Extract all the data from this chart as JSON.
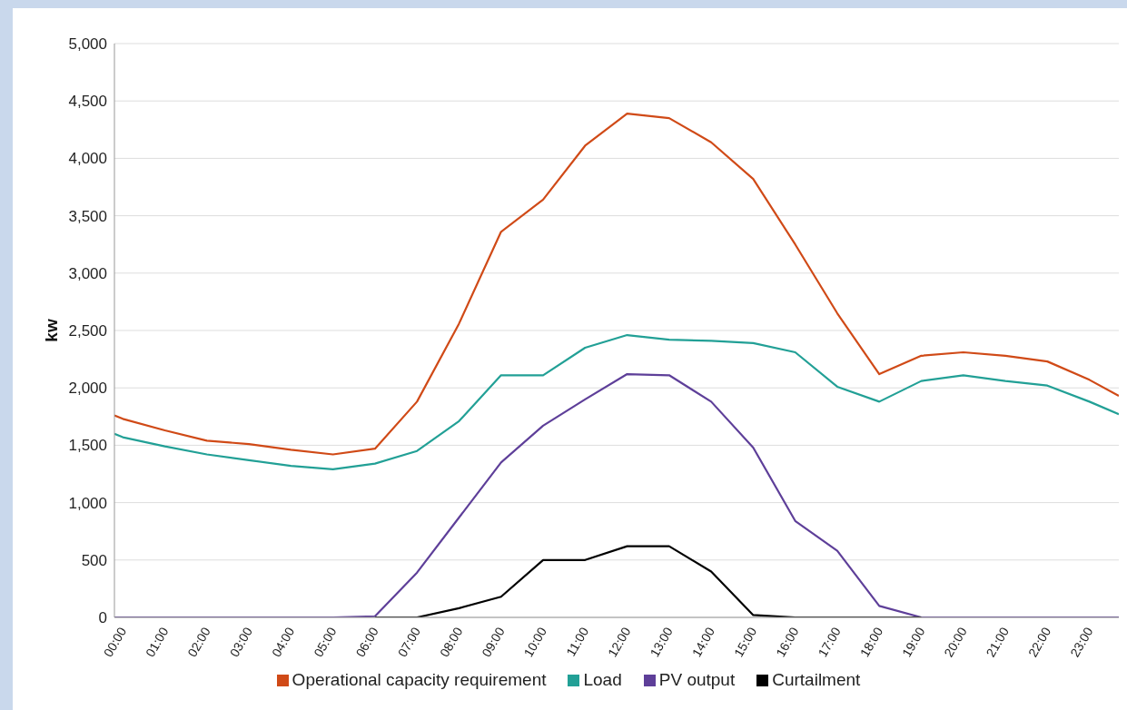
{
  "chart_data": {
    "type": "line",
    "ylabel": "kw",
    "x": [
      -0.2,
      0,
      1,
      2,
      3,
      4,
      5,
      6,
      7,
      8,
      9,
      10,
      11,
      12,
      13,
      14,
      15,
      16,
      17,
      18,
      19,
      20,
      21,
      22,
      23,
      23.7
    ],
    "series": [
      {
        "name": "Operational capacity requirement",
        "color": "#d04a17",
        "values": [
          1760,
          1730,
          1630,
          1540,
          1510,
          1460,
          1420,
          1470,
          1880,
          2560,
          3360,
          3640,
          4110,
          4390,
          4350,
          4140,
          3820,
          3250,
          2650,
          2120,
          2280,
          2310,
          2280,
          2230,
          2070,
          1930
        ]
      },
      {
        "name": "Load",
        "color": "#22a096",
        "values": [
          1600,
          1570,
          1490,
          1420,
          1370,
          1320,
          1290,
          1340,
          1450,
          1710,
          2110,
          2110,
          2350,
          2460,
          2420,
          2410,
          2390,
          2310,
          2010,
          1880,
          2060,
          2110,
          2060,
          2020,
          1880,
          1770
        ]
      },
      {
        "name": "PV output",
        "color": "#5e3f99",
        "values": [
          0,
          0,
          0,
          0,
          0,
          0,
          0,
          10,
          390,
          870,
          1350,
          1670,
          1900,
          2120,
          2110,
          1880,
          1480,
          840,
          580,
          100,
          0,
          0,
          0,
          0,
          0,
          0
        ]
      },
      {
        "name": "Curtailment",
        "color": "#000000",
        "values": [
          null,
          null,
          null,
          null,
          null,
          null,
          null,
          0,
          0,
          80,
          180,
          500,
          500,
          620,
          620,
          400,
          20,
          0,
          0,
          0,
          0,
          null,
          null,
          null,
          null,
          null
        ]
      }
    ],
    "xlim": [
      -0.2,
      23.7
    ],
    "xticks": [
      {
        "value": 0,
        "label": "00:00"
      },
      {
        "value": 1,
        "label": "01:00"
      },
      {
        "value": 2,
        "label": "02:00"
      },
      {
        "value": 3,
        "label": "03:00"
      },
      {
        "value": 4,
        "label": "04:00"
      },
      {
        "value": 5,
        "label": "05:00"
      },
      {
        "value": 6,
        "label": "06:00"
      },
      {
        "value": 7,
        "label": "07:00"
      },
      {
        "value": 8,
        "label": "08:00"
      },
      {
        "value": 9,
        "label": "09:00"
      },
      {
        "value": 10,
        "label": "10:00"
      },
      {
        "value": 11,
        "label": "11:00"
      },
      {
        "value": 12,
        "label": "12:00"
      },
      {
        "value": 13,
        "label": "13:00"
      },
      {
        "value": 14,
        "label": "14:00"
      },
      {
        "value": 15,
        "label": "15:00"
      },
      {
        "value": 16,
        "label": "16:00"
      },
      {
        "value": 17,
        "label": "17:00"
      },
      {
        "value": 18,
        "label": "18:00"
      },
      {
        "value": 19,
        "label": "19:00"
      },
      {
        "value": 20,
        "label": "20:00"
      },
      {
        "value": 21,
        "label": "21:00"
      },
      {
        "value": 22,
        "label": "22:00"
      },
      {
        "value": 23,
        "label": "23:00"
      }
    ],
    "ylim": [
      0,
      5000
    ],
    "yticks": [
      0,
      500,
      {
        "value": 1000,
        "label": "1,000"
      },
      {
        "value": 1500,
        "label": "1,500"
      },
      {
        "value": 2000,
        "label": "2,000"
      },
      {
        "value": 2500,
        "label": "2,500"
      },
      {
        "value": 3000,
        "label": "3,000"
      },
      {
        "value": 3500,
        "label": "3,500"
      },
      {
        "value": 4000,
        "label": "4,000"
      },
      {
        "value": 4500,
        "label": "4,500"
      },
      {
        "value": 5000,
        "label": "5,000"
      }
    ],
    "grid": "y",
    "legend": "bottom",
    "marker": "none",
    "line_style": "solid"
  }
}
